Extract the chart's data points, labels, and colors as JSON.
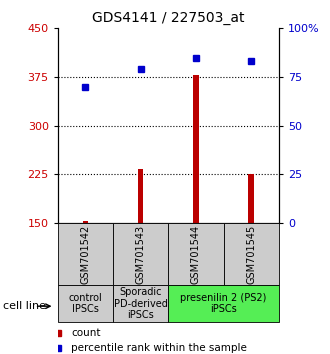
{
  "title": "GDS4141 / 227503_at",
  "samples": [
    "GSM701542",
    "GSM701543",
    "GSM701544",
    "GSM701545"
  ],
  "counts": [
    153,
    233,
    378,
    226
  ],
  "percentiles": [
    70,
    79,
    85,
    83
  ],
  "ylim_left": [
    150,
    450
  ],
  "ylim_right": [
    0,
    100
  ],
  "yticks_left": [
    150,
    225,
    300,
    375,
    450
  ],
  "yticks_right": [
    0,
    25,
    50,
    75,
    100
  ],
  "hlines": [
    225,
    300,
    375
  ],
  "bar_color": "#bb0000",
  "dot_color": "#0000cc",
  "bar_bottom": 150,
  "bar_width": 0.1,
  "groups": [
    {
      "label": "control\nIPSCs",
      "span": [
        0,
        1
      ],
      "color": "#cccccc"
    },
    {
      "label": "Sporadic\nPD-derived\niPSCs",
      "span": [
        1,
        2
      ],
      "color": "#cccccc"
    },
    {
      "label": "presenilin 2 (PS2)\niPSCs",
      "span": [
        2,
        4
      ],
      "color": "#55ee55"
    }
  ],
  "cell_line_label": "cell line",
  "legend_count_label": "count",
  "legend_pct_label": "percentile rank within the sample",
  "background_color": "#ffffff",
  "plot_bg_color": "#ffffff",
  "tick_label_color_left": "#cc0000",
  "tick_label_color_right": "#0000cc",
  "title_fontsize": 10,
  "tick_fontsize": 8,
  "sample_fontsize": 7,
  "group_fontsize": 7,
  "legend_fontsize": 7.5,
  "dot_size": 4
}
